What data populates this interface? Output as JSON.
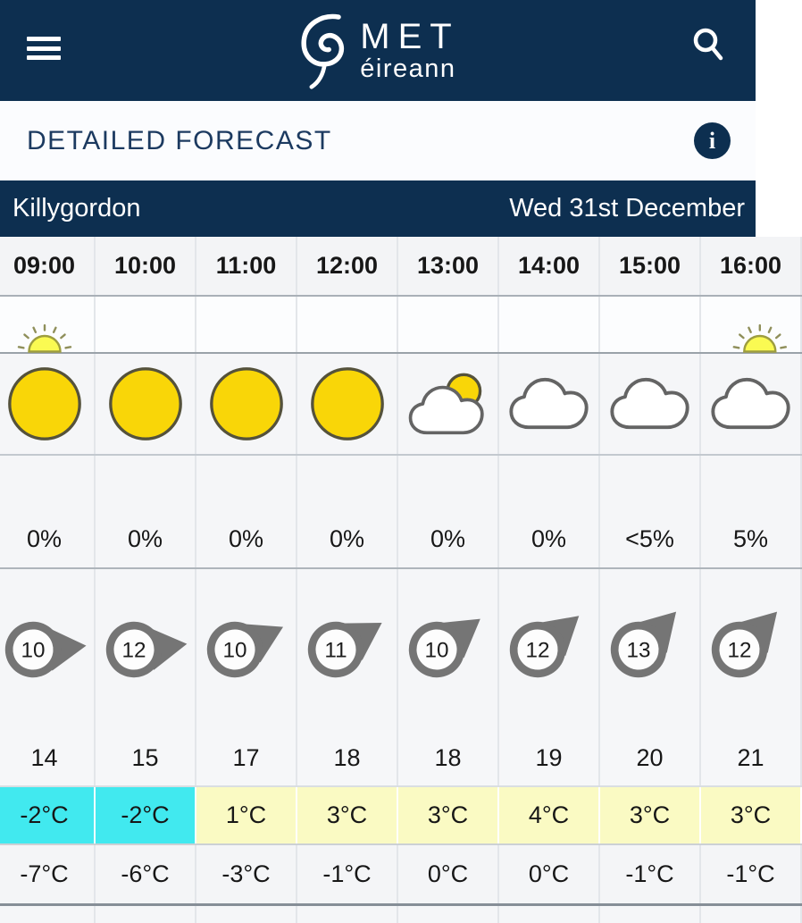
{
  "navbar": {
    "logo_title": "MET",
    "logo_subtitle": "éireann",
    "icons": {
      "menu": "hamburger-icon",
      "search": "magnifier-icon",
      "brand": "spiral-hurricane-icon"
    }
  },
  "page": {
    "title": "DETAILED FORECAST",
    "info_icon": "i"
  },
  "location_bar": {
    "location": "Killygordon",
    "date": "Wed 31st December"
  },
  "colors": {
    "navy": "#0d2f50",
    "temp_cold_bg": "#41e9ef",
    "temp_warm_bg": "#fafac3",
    "sun_yellow": "#f9d608",
    "sunrise_yellow": "#fafa52",
    "wind_gray": "#757575"
  },
  "forecast": {
    "hours": [
      "09:00",
      "10:00",
      "11:00",
      "12:00",
      "13:00",
      "14:00",
      "15:00",
      "16:00"
    ],
    "sun_events": [
      {
        "col": 0,
        "type": "sunrise"
      },
      {
        "col": 7,
        "type": "sunset"
      }
    ],
    "weather_icons": [
      "sunny",
      "sunny",
      "sunny",
      "sunny",
      "sun-cloud",
      "cloudy",
      "cloudy",
      "cloudy"
    ],
    "precip_chance": [
      "0%",
      "0%",
      "0%",
      "0%",
      "0%",
      "0%",
      "<5%",
      "5%"
    ],
    "wind_speed": [
      10,
      12,
      10,
      11,
      10,
      12,
      13,
      12
    ],
    "wind_dir_deg": [
      5,
      3,
      -16,
      -21,
      -26,
      -30,
      -36,
      -36
    ],
    "wind_gust": [
      14,
      15,
      17,
      18,
      18,
      19,
      20,
      21
    ],
    "temperature": [
      "-2°C",
      "-2°C",
      "1°C",
      "3°C",
      "3°C",
      "4°C",
      "3°C",
      "3°C"
    ],
    "temperature_band": [
      "cold",
      "cold",
      "warm",
      "warm",
      "warm",
      "warm",
      "warm",
      "warm"
    ],
    "feels_like": [
      "-7°C",
      "-6°C",
      "-3°C",
      "-1°C",
      "0°C",
      "0°C",
      "-1°C",
      "-1°C"
    ]
  }
}
